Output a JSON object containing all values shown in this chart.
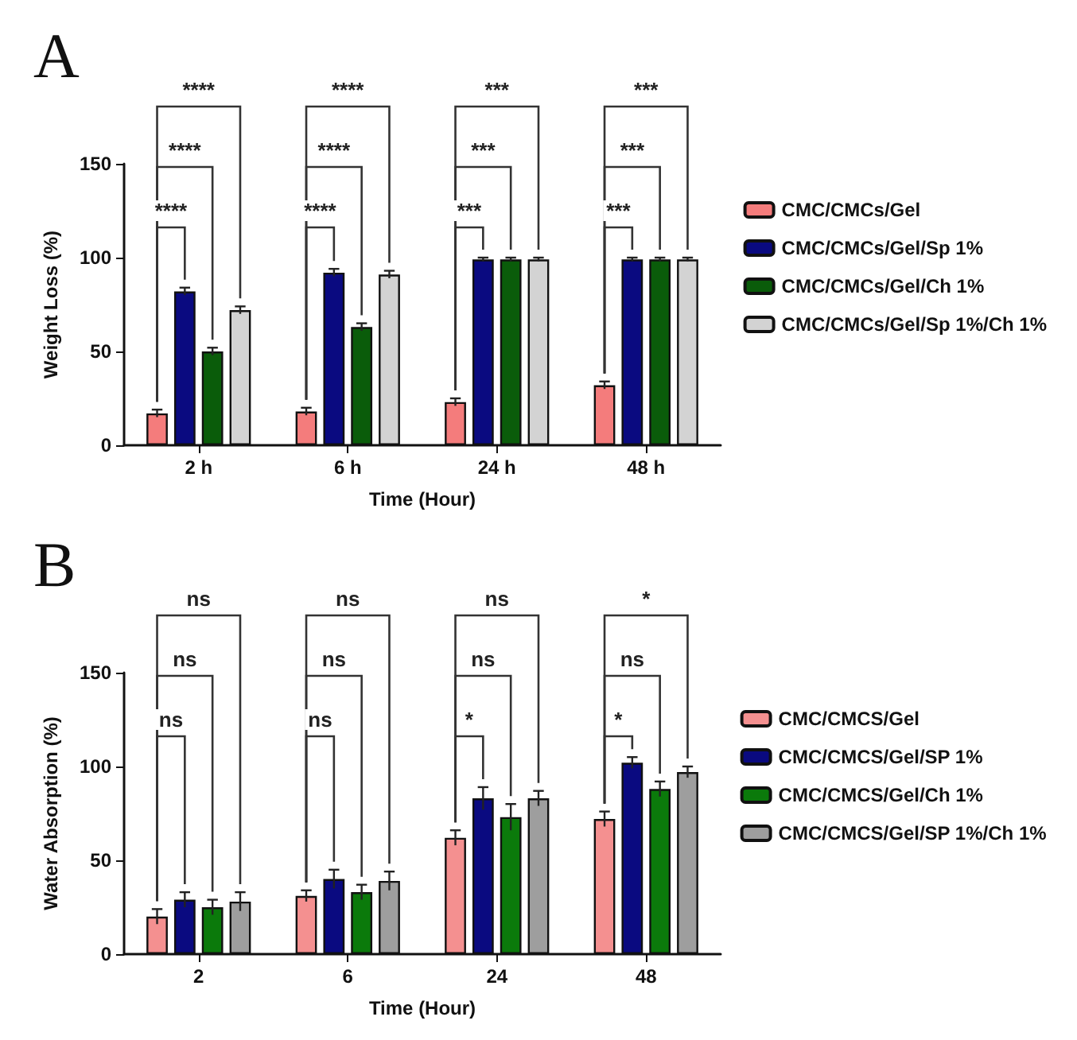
{
  "chart_data": [
    {
      "type": "bar",
      "title": "A",
      "xlabel": "Time (Hour)",
      "ylabel": "Weight Loss (%)",
      "categories": [
        "2 h",
        "6 h",
        "24 h",
        "48 h"
      ],
      "series": [
        {
          "name": "CMC/CMCs/Gel",
          "color": "#f47c7c",
          "values": [
            17,
            18,
            23,
            32
          ],
          "errors": [
            2,
            2,
            2,
            2
          ]
        },
        {
          "name": "CMC/CMCs/Gel/Sp 1%",
          "color": "#0a0a80",
          "values": [
            82,
            92,
            99,
            99
          ],
          "errors": [
            2,
            2,
            1,
            1
          ]
        },
        {
          "name": "CMC/CMCs/Gel/Ch 1%",
          "color": "#0a5c0a",
          "values": [
            50,
            63,
            99,
            99
          ],
          "errors": [
            2,
            2,
            1,
            1
          ]
        },
        {
          "name": "CMC/CMCs/Gel/Sp 1%/Ch 1%",
          "color": "#d3d3d3",
          "values": [
            72,
            91,
            99,
            99
          ],
          "errors": [
            2,
            2,
            1,
            1
          ]
        }
      ],
      "ylim": [
        0,
        150
      ],
      "yticks": [
        0,
        50,
        100,
        150
      ],
      "grid": false,
      "legend": "right",
      "annotations": [
        "****",
        "****",
        "****",
        "****",
        "****",
        "****",
        "***",
        "***",
        "***",
        "***",
        "***",
        "***"
      ]
    },
    {
      "type": "bar",
      "title": "B",
      "xlabel": "Time (Hour)",
      "ylabel": "Water Absorption (%)",
      "categories": [
        "2",
        "6",
        "24",
        "48"
      ],
      "series": [
        {
          "name": "CMC/CMCS/Gel",
          "color": "#f49090",
          "values": [
            20,
            31,
            62,
            72
          ],
          "errors": [
            4,
            3,
            4,
            4
          ]
        },
        {
          "name": "CMC/CMCS/Gel/SP 1%",
          "color": "#0a0a80",
          "values": [
            29,
            40,
            83,
            102
          ],
          "errors": [
            4,
            5,
            6,
            3
          ]
        },
        {
          "name": "CMC/CMCS/Gel/Ch 1%",
          "color": "#0b7a0b",
          "values": [
            25,
            33,
            73,
            88
          ],
          "errors": [
            4,
            4,
            7,
            4
          ]
        },
        {
          "name": "CMC/CMCS/Gel/SP 1%/Ch 1%",
          "color": "#9e9e9e",
          "values": [
            28,
            39,
            83,
            97
          ],
          "errors": [
            5,
            5,
            4,
            3
          ]
        }
      ],
      "ylim": [
        0,
        150
      ],
      "yticks": [
        0,
        50,
        100,
        150
      ],
      "grid": false,
      "legend": "right",
      "annotations": [
        "ns",
        "ns",
        "ns",
        "ns",
        "ns",
        "ns",
        "*",
        "ns",
        "ns",
        "*",
        "ns",
        "*"
      ]
    }
  ]
}
